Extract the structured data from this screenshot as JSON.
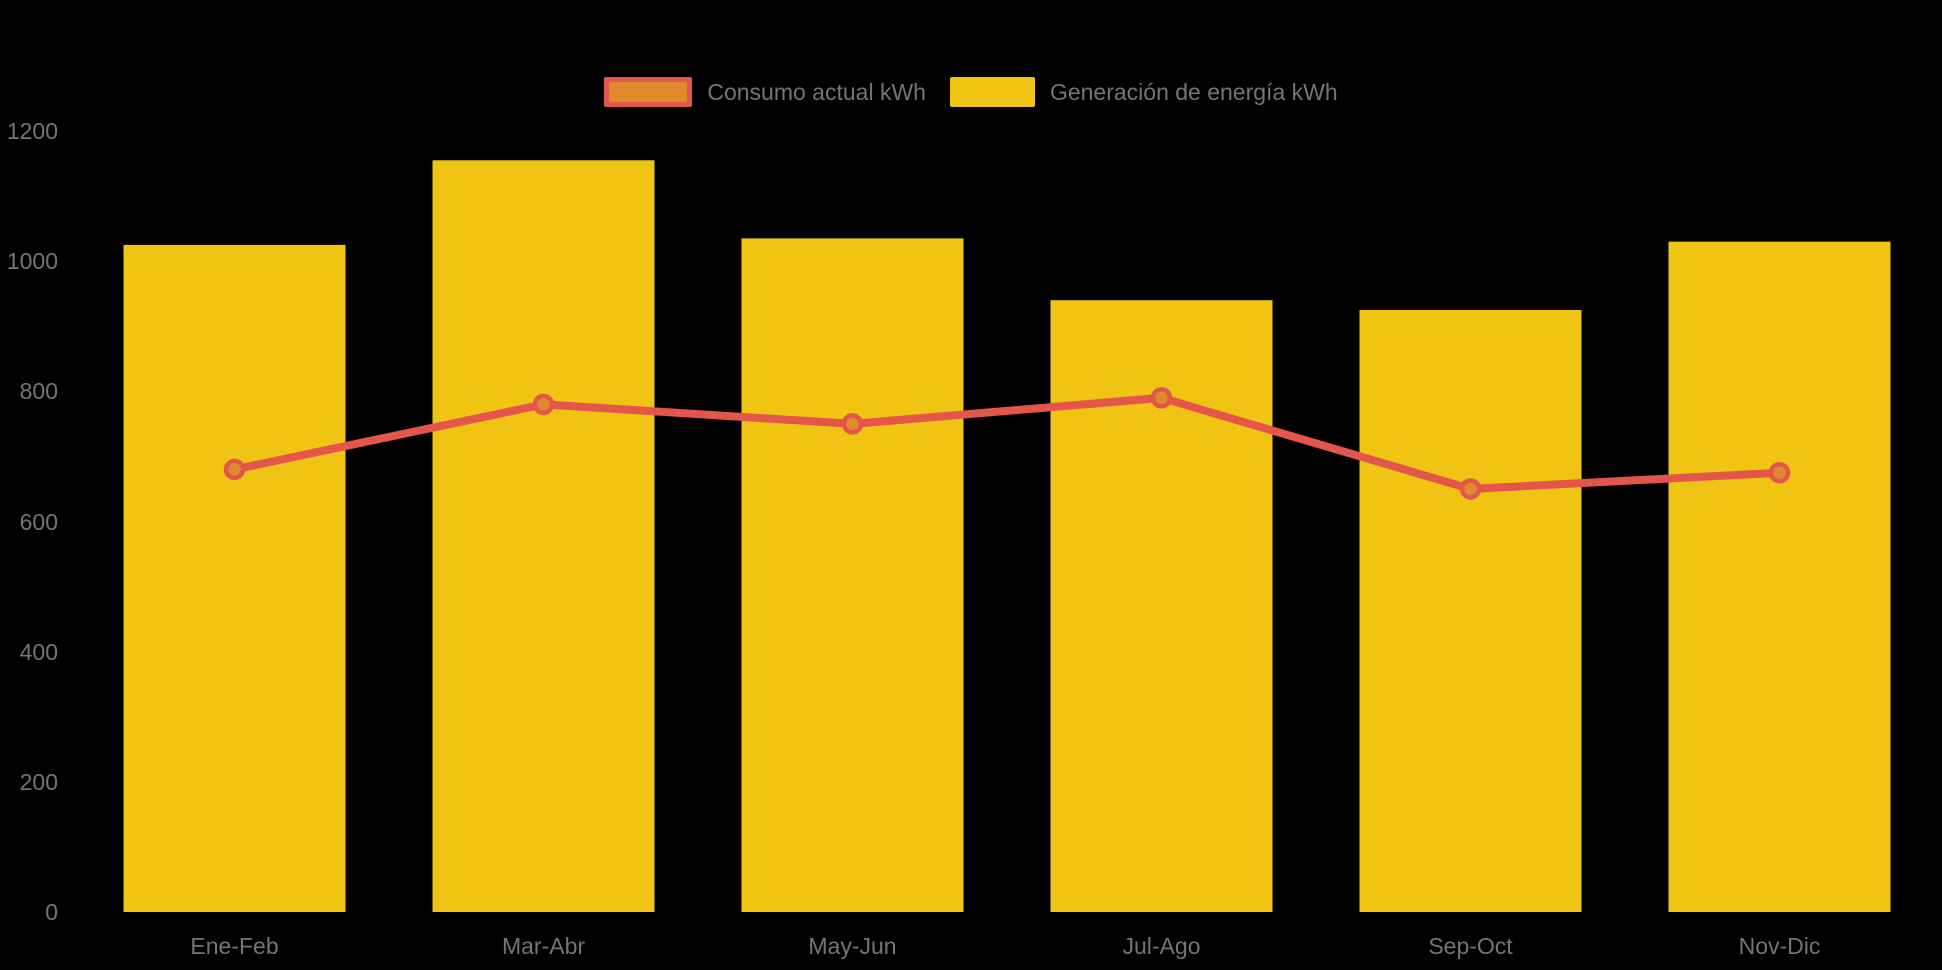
{
  "chart_data": {
    "type": "bar+line combo",
    "categories": [
      "Ene-Feb",
      "Mar-Abr",
      "May-Jun",
      "Jul-Ago",
      "Sep-Oct",
      "Nov-Dic"
    ],
    "series": [
      {
        "name": "Consumo actual kWh",
        "type": "line",
        "values": [
          680,
          780,
          750,
          790,
          650,
          675
        ],
        "color": "#e4554c",
        "marker_fill": "#e08a2e"
      },
      {
        "name": "Generación de energía kWh",
        "type": "bar",
        "values": [
          1025,
          1155,
          1035,
          940,
          925,
          1030
        ],
        "color": "#f0c413"
      }
    ],
    "ylim": [
      0,
      1200
    ],
    "y_ticks": [
      0,
      200,
      400,
      600,
      800,
      1000,
      1200
    ],
    "grid": false,
    "legend_position": "top-center",
    "background_color": "#000000",
    "text_color": "#757575"
  },
  "legend": {
    "items": [
      {
        "label": "Consumo actual kWh"
      },
      {
        "label": "Generación de energía kWh"
      }
    ]
  }
}
